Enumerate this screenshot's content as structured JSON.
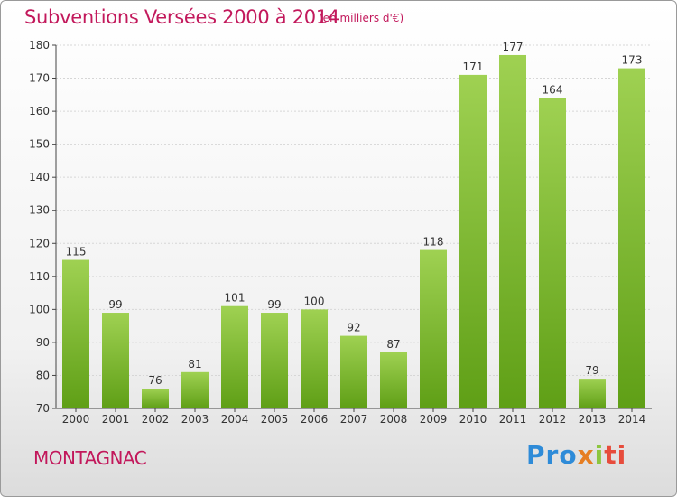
{
  "header": {
    "title": "Subventions Versées 2000 à 2014",
    "unit": "(en milliers d'€)"
  },
  "footer": {
    "commune": "MONTAGNAC",
    "logo_text": "Proxiti"
  },
  "colors": {
    "title": "#c2185b",
    "bar_light": "#9fd152",
    "bar_dark": "#5f9f16"
  },
  "chart_data": {
    "type": "bar",
    "title": "Subventions Versées 2000 à 2014",
    "subtitle": "(en milliers d'€)",
    "categories": [
      "2000",
      "2001",
      "2002",
      "2003",
      "2004",
      "2005",
      "2006",
      "2007",
      "2008",
      "2009",
      "2010",
      "2011",
      "2012",
      "2013",
      "2014"
    ],
    "values": [
      115,
      99,
      76,
      81,
      101,
      99,
      100,
      92,
      87,
      118,
      171,
      177,
      164,
      79,
      173
    ],
    "ylim": [
      70,
      180
    ],
    "yticks": [
      70,
      80,
      90,
      100,
      110,
      120,
      130,
      140,
      150,
      160,
      170,
      180
    ],
    "grid": true,
    "legend": "none"
  }
}
